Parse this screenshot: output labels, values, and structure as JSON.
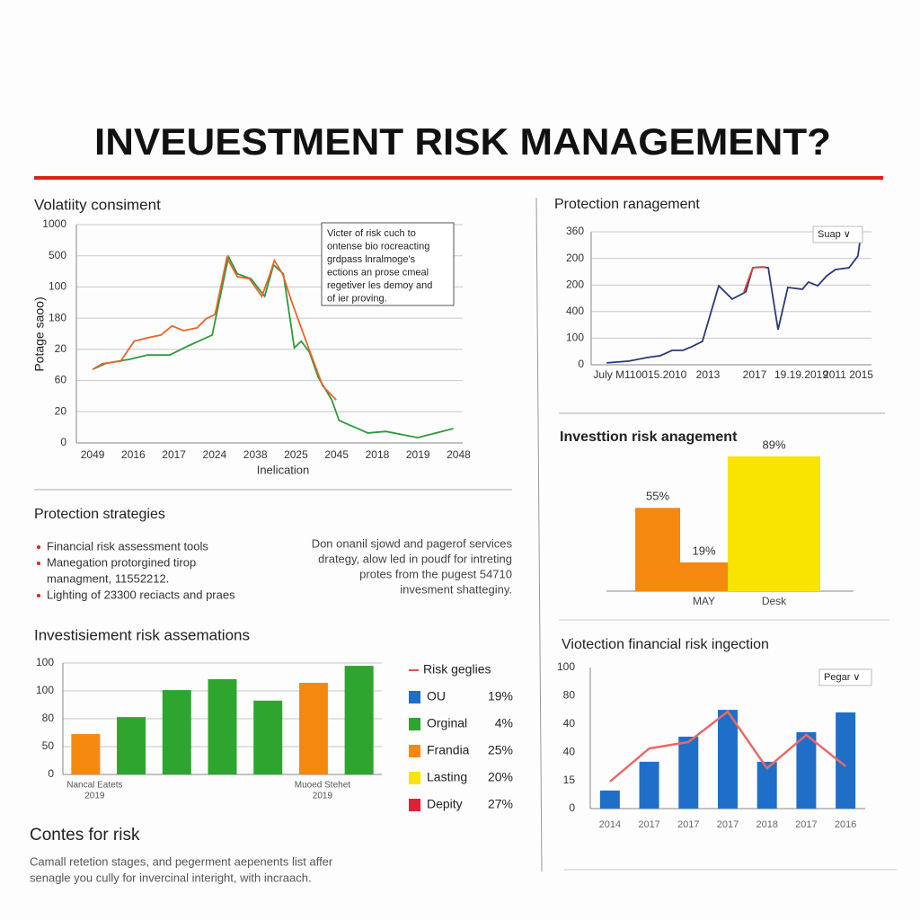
{
  "header": {
    "title": "INVEUESTMENT RISK MANAGEMENT?"
  },
  "strategies": {
    "title": "Protection strategies",
    "bullets": [
      [
        "Financial risk assessment tools"
      ],
      [
        "Manegation protorgined tirop",
        "managment, 11552212."
      ],
      [
        "Lighting of 23300 reciacts and praes"
      ]
    ],
    "note": [
      "Don onanil sjowd and pagerof services",
      "drategy, alow led in poudf for intreting",
      "protes from the pugest 54710",
      "invesment shatteginy."
    ]
  },
  "closing": {
    "title": "Contes for risk",
    "lines": [
      "Camall retetion stages, and pegerment aepenents list affer",
      "senagle you cully for invercinal interight, with incraach."
    ]
  },
  "chart_data": [
    {
      "type": "line",
      "title": "Volatiity consiment",
      "x_label": "Inelication",
      "y_label": "Potage saoo)",
      "xlim": [
        -0.4,
        9.1
      ],
      "ylim": [
        0,
        7
      ],
      "grid": true,
      "xticks": [
        {
          "value": 0,
          "label": "2049"
        },
        {
          "value": 1,
          "label": "2016"
        },
        {
          "value": 2,
          "label": "2017"
        },
        {
          "value": 3,
          "label": "2024"
        },
        {
          "value": 4,
          "label": "2038"
        },
        {
          "value": 5,
          "label": "2025"
        },
        {
          "value": 6,
          "label": "2045"
        },
        {
          "value": 7,
          "label": "2018"
        },
        {
          "value": 8,
          "label": "2019"
        },
        {
          "value": 9,
          "label": "2048"
        }
      ],
      "yticks": [
        0,
        {
          "value": 1,
          "label": "20"
        },
        {
          "value": 2,
          "label": "60"
        },
        {
          "value": 3,
          "label": "20"
        },
        {
          "value": 4,
          "label": "180"
        },
        {
          "value": 5,
          "label": "100"
        },
        {
          "value": 6,
          "label": "500"
        },
        {
          "value": 7,
          "label": "1000"
        }
      ],
      "annotation": [
        "Victer of risk cuch to",
        "ontense bio rocreacting",
        "grdpass lnralmoge's",
        "ections an prose cmeal",
        "regetiver les demoy and",
        "of ier proving."
      ],
      "series": [
        {
          "color": "#2e9a3a",
          "x": [
            0,
            0.35,
            0.9,
            1.35,
            1.9,
            2.35,
            2.94,
            3.34,
            3.56,
            3.89,
            4.23,
            4.45,
            4.69,
            4.96,
            5.13,
            5.33,
            5.55,
            5.88,
            6.06,
            6.77,
            7.21,
            7.99,
            8.87
          ],
          "values": [
            2.36,
            2.56,
            2.68,
            2.82,
            2.82,
            3.11,
            3.46,
            5.97,
            5.42,
            5.27,
            4.7,
            5.71,
            5.42,
            3.05,
            3.26,
            2.91,
            2.1,
            1.38,
            0.72,
            0.32,
            0.37,
            0.17,
            0.46
          ]
        },
        {
          "color": "#e8642a",
          "x": [
            0,
            0.24,
            0.69,
            1.02,
            1.35,
            1.68,
            1.95,
            2.24,
            2.57,
            2.79,
            3.01,
            3.16,
            3.3,
            3.56,
            3.85,
            4.16,
            4.34,
            4.47,
            4.67,
            4.89,
            5.33,
            5.66,
            5.99
          ],
          "values": [
            2.36,
            2.54,
            2.62,
            3.26,
            3.37,
            3.46,
            3.75,
            3.6,
            3.69,
            3.98,
            4.12,
            5.04,
            5.94,
            5.33,
            5.27,
            4.7,
            5.33,
            5.85,
            5.42,
            4.55,
            2.97,
            1.82,
            1.38
          ]
        }
      ]
    },
    {
      "type": "line",
      "title": "Protection ranagement",
      "dropdown": "Suap ∨",
      "xlim": [
        -0.5,
        5.5
      ],
      "ylim": [
        0,
        5
      ],
      "grid": true,
      "xticks": [
        {
          "value": 0,
          "label": "July M11"
        },
        {
          "value": 1,
          "label": "0015.2010"
        },
        {
          "value": 2,
          "label": "2013"
        },
        {
          "value": 3,
          "label": "2017"
        },
        {
          "value": 4,
          "label": "19.19.2019"
        },
        {
          "value": 5,
          "label": "2011 2015"
        }
      ],
      "yticks": [
        0,
        {
          "value": 1,
          "label": "100"
        },
        {
          "value": 2,
          "label": "400"
        },
        {
          "value": 3,
          "label": "200"
        },
        {
          "value": 4,
          "label": "200"
        },
        {
          "value": 5,
          "label": "360"
        }
      ],
      "series": [
        {
          "color": "#2a3a78",
          "x": [
            -0.17,
            0.31,
            0.69,
            0.98,
            1.23,
            1.46,
            1.65,
            1.88,
            2.23,
            2.52,
            2.81,
            2.96,
            3.15,
            3.29,
            3.5,
            3.71,
            3.87,
            4.02,
            4.15,
            4.35,
            4.54,
            4.73,
            5.02,
            5.21,
            5.27
          ],
          "values": [
            0.07,
            0.14,
            0.27,
            0.34,
            0.54,
            0.54,
            0.68,
            0.88,
            2.97,
            2.47,
            2.74,
            3.65,
            3.68,
            3.65,
            1.32,
            2.91,
            2.87,
            2.84,
            3.11,
            2.97,
            3.34,
            3.58,
            3.65,
            4.09,
            4.86
          ]
        },
        {
          "color": "#e0452f",
          "x": [
            2.77,
            2.96,
            3.23
          ],
          "values": [
            2.74,
            3.65,
            3.68
          ]
        }
      ]
    },
    {
      "type": "steps",
      "title": "Investtion risk anagement",
      "categories": [
        null,
        "MAY",
        "Desk"
      ],
      "values": [
        55,
        19,
        89
      ],
      "value_labels": [
        "55%",
        "19%",
        "89%"
      ],
      "colors": [
        "#f5890f",
        "#f5890f",
        "#f8e400"
      ],
      "ylim": [
        0,
        100
      ]
    },
    {
      "type": "combo",
      "title": "Viotection financial risk ingection",
      "dropdown": "Pegar ∨",
      "categories": [
        "2014",
        "2017",
        "2017",
        "2017",
        "2018",
        "2017",
        "2016"
      ],
      "values": [
        0.64,
        1.66,
        2.55,
        3.5,
        1.66,
        2.71,
        3.41
      ],
      "color": "#1f6fc9",
      "line": {
        "color": "#e86a6a",
        "values": [
          0.96,
          2.13,
          2.36,
          3.44,
          1.43,
          2.61,
          1.5
        ]
      },
      "ylim": [
        0,
        5
      ],
      "yticks": [
        0,
        {
          "value": 1,
          "label": "15"
        },
        {
          "value": 2,
          "label": "40"
        },
        {
          "value": 3,
          "label": "40"
        },
        {
          "value": 4,
          "label": "80"
        },
        {
          "value": 5,
          "label": "100"
        }
      ]
    },
    {
      "type": "bar",
      "title": "Investisiement risk assemations",
      "categories": [
        [
          "Nancal Eatets",
          "2019"
        ],
        null,
        null,
        null,
        null,
        [
          "Muoed Stehet",
          "2019"
        ],
        null
      ],
      "values": [
        1.45,
        2.06,
        3.03,
        3.42,
        2.65,
        3.29,
        3.9
      ],
      "colors": [
        "#f5890f",
        "#2ea52e",
        "#2ea52e",
        "#2ea52e",
        "#2ea52e",
        "#f5890f",
        "#2ea52e"
      ],
      "ylim": [
        0,
        4
      ],
      "grid": true,
      "yticks": [
        0,
        {
          "value": 1,
          "label": "50"
        },
        {
          "value": 2,
          "label": "80"
        },
        {
          "value": 3,
          "label": "100"
        },
        {
          "value": 4,
          "label": "100"
        }
      ],
      "legend": {
        "title": "Risk geglies",
        "title_color": "#e05050",
        "items": [
          {
            "name": "OU",
            "color": "#1f6fc9",
            "share": "19%"
          },
          {
            "name": "Orginal",
            "color": "#2ea52e",
            "share": "4%"
          },
          {
            "name": "Frandia",
            "color": "#f5890f",
            "share": "25%"
          },
          {
            "name": "Lasting",
            "color": "#f8e400",
            "share": "20%"
          },
          {
            "name": "Depity",
            "color": "#e0203a",
            "share": "27%"
          }
        ]
      }
    }
  ]
}
